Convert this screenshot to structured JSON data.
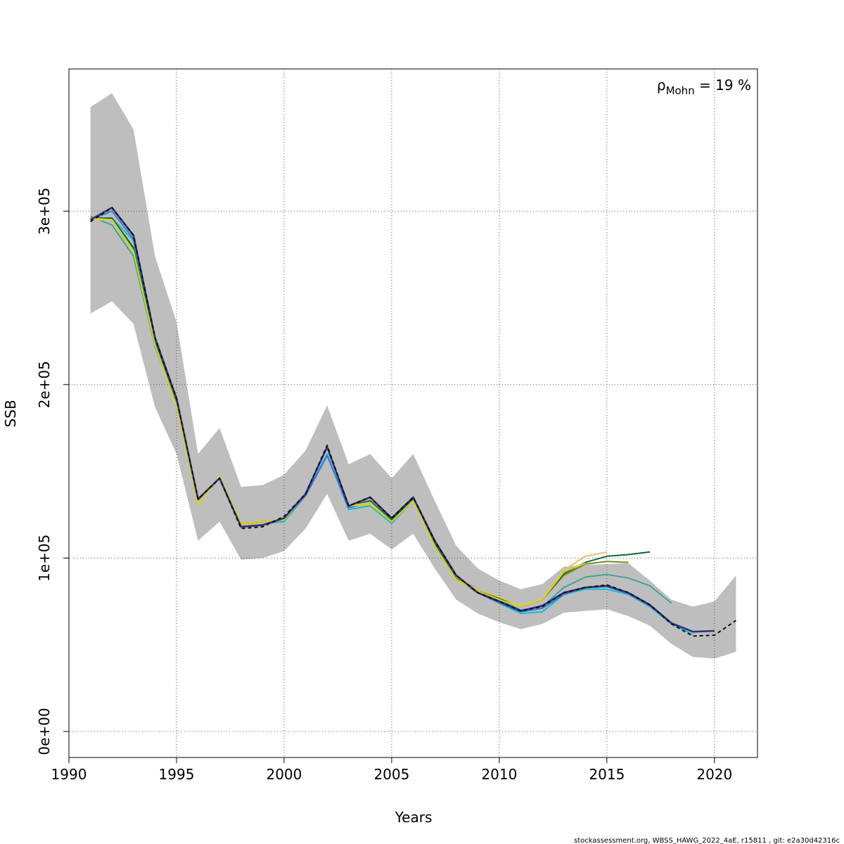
{
  "chart_data": {
    "type": "line",
    "xlabel": "Years",
    "ylabel": "SSB",
    "xlim": [
      1990,
      2022
    ],
    "ylim": [
      -15000,
      382000
    ],
    "x_ticks": [
      1990,
      1995,
      2000,
      2005,
      2010,
      2015,
      2020
    ],
    "x_tick_labels": [
      "1990",
      "1995",
      "2000",
      "2005",
      "2010",
      "2015",
      "2020"
    ],
    "y_ticks": [
      0,
      100000,
      200000,
      300000
    ],
    "y_tick_labels": [
      "0e+00",
      "1e+05",
      "2e+05",
      "3e+05"
    ],
    "grid": true,
    "annotation": {
      "symbol": "ρ",
      "subscript": "Mohn",
      "text": " = 19 %"
    },
    "confidence_band": {
      "color": "#bebebe",
      "x": [
        1991,
        1992,
        1993,
        1994,
        1995,
        1996,
        1997,
        1998,
        1999,
        2000,
        2001,
        2002,
        2003,
        2004,
        2005,
        2006,
        2007,
        2008,
        2009,
        2010,
        2011,
        2012,
        2013,
        2014,
        2015,
        2016,
        2017,
        2018,
        2019,
        2020,
        2021
      ],
      "lower": [
        241000,
        248000,
        235000,
        187000,
        160000,
        110000,
        121000,
        99000,
        100000,
        104000,
        117000,
        137000,
        110000,
        114000,
        105000,
        114000,
        94000,
        76000,
        68000,
        63000,
        59000,
        62000,
        68500,
        69500,
        70500,
        66500,
        61000,
        50500,
        43000,
        42000,
        46000
      ],
      "upper": [
        360000,
        368000,
        347000,
        274000,
        236000,
        160000,
        175000,
        141000,
        142000,
        148000,
        162000,
        188000,
        154000,
        160000,
        146000,
        160000,
        133000,
        107000,
        94000,
        87000,
        82000,
        85000,
        95000,
        96000,
        96500,
        97000,
        87000,
        76000,
        72000,
        75000,
        90000
      ]
    },
    "series": [
      {
        "color": "#17becf",
        "x": [
          1991,
          1992,
          1993,
          1994,
          1995,
          1996,
          1997,
          1998,
          1999,
          2000,
          2001,
          2002,
          2003,
          2004,
          2005,
          2006,
          2007,
          2008,
          2009,
          2010,
          2011,
          2012,
          2013,
          2014,
          2015,
          2016,
          2017,
          2018,
          2019
        ],
        "values": [
          296000,
          296000,
          283000,
          224000,
          189000,
          133000,
          146000,
          119000,
          120000,
          121000,
          136000,
          160000,
          128000,
          130000,
          120000,
          133000,
          108000,
          88000,
          80000,
          74000,
          68000,
          69000,
          79000,
          82000,
          82000,
          79000,
          72000,
          62000,
          56000
        ]
      },
      {
        "color": "#3a78d8",
        "x": [
          1991,
          1992,
          1993,
          1994,
          1995,
          1996,
          1997,
          1998,
          1999,
          2000,
          2001,
          2002,
          2003,
          2004,
          2005,
          2006,
          2007,
          2008,
          2009,
          2010,
          2011,
          2012,
          2013,
          2014,
          2015,
          2016,
          2017,
          2018
        ],
        "values": [
          295000,
          300000,
          284000,
          225000,
          190000,
          133000,
          146000,
          119000,
          119000,
          122000,
          136000,
          159000,
          129000,
          132000,
          121000,
          134000,
          109000,
          88000,
          80000,
          74000,
          69000,
          71000,
          79000,
          83000,
          83500,
          79500,
          72500,
          62500
        ]
      },
      {
        "color": "#3aa896",
        "x": [
          1991,
          1992,
          1993,
          1994,
          1995,
          1996,
          1997,
          1998,
          1999,
          2000,
          2001,
          2002,
          2003,
          2004,
          2005,
          2006,
          2007,
          2008,
          2009,
          2010,
          2011,
          2012,
          2013,
          2014,
          2015,
          2016,
          2017,
          2018
        ],
        "values": [
          297000,
          292000,
          274000,
          222000,
          189000,
          133000,
          146000,
          120000,
          121000,
          122000,
          137000,
          164000,
          130000,
          131000,
          121000,
          133000,
          107000,
          87000,
          81000,
          76000,
          70000,
          72000,
          83000,
          89000,
          90500,
          88500,
          84000,
          74000
        ]
      },
      {
        "color": "#7a8a1a",
        "x": [
          1991,
          1992,
          1993,
          1994,
          1995,
          1996,
          1997,
          1998,
          1999,
          2000,
          2001,
          2002,
          2003,
          2004,
          2005,
          2006,
          2007,
          2008,
          2009,
          2010,
          2011,
          2012,
          2013,
          2014,
          2015,
          2016
        ],
        "values": [
          295000,
          295000,
          278000,
          224000,
          189000,
          132000,
          146000,
          119000,
          120000,
          122000,
          137000,
          164000,
          130000,
          133000,
          122000,
          134000,
          108000,
          88000,
          82000,
          77000,
          72000,
          76000,
          90000,
          96500,
          98000,
          97500
        ]
      },
      {
        "color": "#0e6b34",
        "x": [
          1991,
          1992,
          1993,
          1994,
          1995,
          1996,
          1997,
          1998,
          1999,
          2000,
          2001,
          2002,
          2003,
          2004,
          2005,
          2006,
          2007,
          2008,
          2009,
          2010,
          2011,
          2012,
          2013,
          2014,
          2015,
          2016,
          2017
        ],
        "values": [
          296000,
          296000,
          279000,
          224000,
          189000,
          132000,
          146000,
          119000,
          120000,
          122000,
          137000,
          164000,
          130000,
          133000,
          122000,
          134000,
          108000,
          88000,
          82000,
          77000,
          72000,
          76000,
          91000,
          97500,
          101000,
          102000,
          103500
        ]
      },
      {
        "color": "#e8c076",
        "x": [
          1991,
          1992,
          1993,
          1994,
          1995,
          1996,
          1997,
          1998,
          1999,
          2000,
          2001,
          2002,
          2003,
          2004,
          2005,
          2006,
          2007,
          2008,
          2009,
          2010,
          2011,
          2012,
          2013,
          2014,
          2015
        ],
        "values": [
          295000,
          295000,
          277000,
          223000,
          188000,
          132000,
          146000,
          119000,
          120000,
          122000,
          137000,
          164000,
          130000,
          132000,
          121000,
          133000,
          107000,
          87500,
          82000,
          77500,
          72500,
          76500,
          93000,
          101000,
          103500
        ]
      },
      {
        "color": "#d6d218",
        "x": [
          1991,
          1992,
          1993,
          1994,
          1995,
          1996,
          1997,
          1998,
          1999,
          2000,
          2001,
          2002,
          2003,
          2004,
          2005,
          2006,
          2007,
          2008,
          2009,
          2010,
          2011,
          2012,
          2013,
          2014
        ],
        "values": [
          296000,
          295000,
          277000,
          223000,
          188000,
          131000,
          147000,
          120000,
          121000,
          122000,
          137000,
          164000,
          130000,
          131000,
          121000,
          133000,
          107000,
          87000,
          81000,
          76000,
          72000,
          76000,
          92000,
          97000
        ]
      },
      {
        "color": "#312e7e",
        "width": 2.6,
        "x": [
          1991,
          1992,
          1993,
          1994,
          1995,
          1996,
          1997,
          1998,
          1999,
          2000,
          2001,
          2002,
          2003,
          2004,
          2005,
          2006,
          2007,
          2008,
          2009,
          2010,
          2011,
          2012,
          2013,
          2014,
          2015,
          2016,
          2017,
          2018,
          2019,
          2020
        ],
        "values": [
          295000,
          302000,
          286000,
          227000,
          192000,
          134000,
          146000,
          118000,
          119000,
          123000,
          137000,
          164000,
          130000,
          135000,
          123000,
          135000,
          110000,
          90000,
          80000,
          75000,
          69500,
          72500,
          80000,
          83000,
          84000,
          80000,
          73000,
          62500,
          57500,
          58000
        ]
      },
      {
        "color": "#111111",
        "dashed": true,
        "x": [
          1991,
          1992,
          1993,
          1994,
          1995,
          1996,
          1997,
          1998,
          1999,
          2000,
          2001,
          2002,
          2003,
          2004,
          2005,
          2006,
          2007,
          2008,
          2009,
          2010,
          2011,
          2012,
          2013,
          2014,
          2015,
          2016,
          2017,
          2018,
          2019,
          2020,
          2021
        ],
        "values": [
          294000,
          302000,
          286000,
          227000,
          192000,
          134000,
          146000,
          117000,
          118000,
          124000,
          137000,
          165000,
          130000,
          135000,
          123000,
          135000,
          110000,
          90000,
          80000,
          75000,
          69500,
          72000,
          80000,
          83000,
          84500,
          80000,
          73000,
          62000,
          55000,
          55500,
          64000
        ]
      }
    ]
  },
  "footer": "stockassessment.org, WBSS_HAWG_2022_4aE, r15811 , git: e2a30d42316c"
}
